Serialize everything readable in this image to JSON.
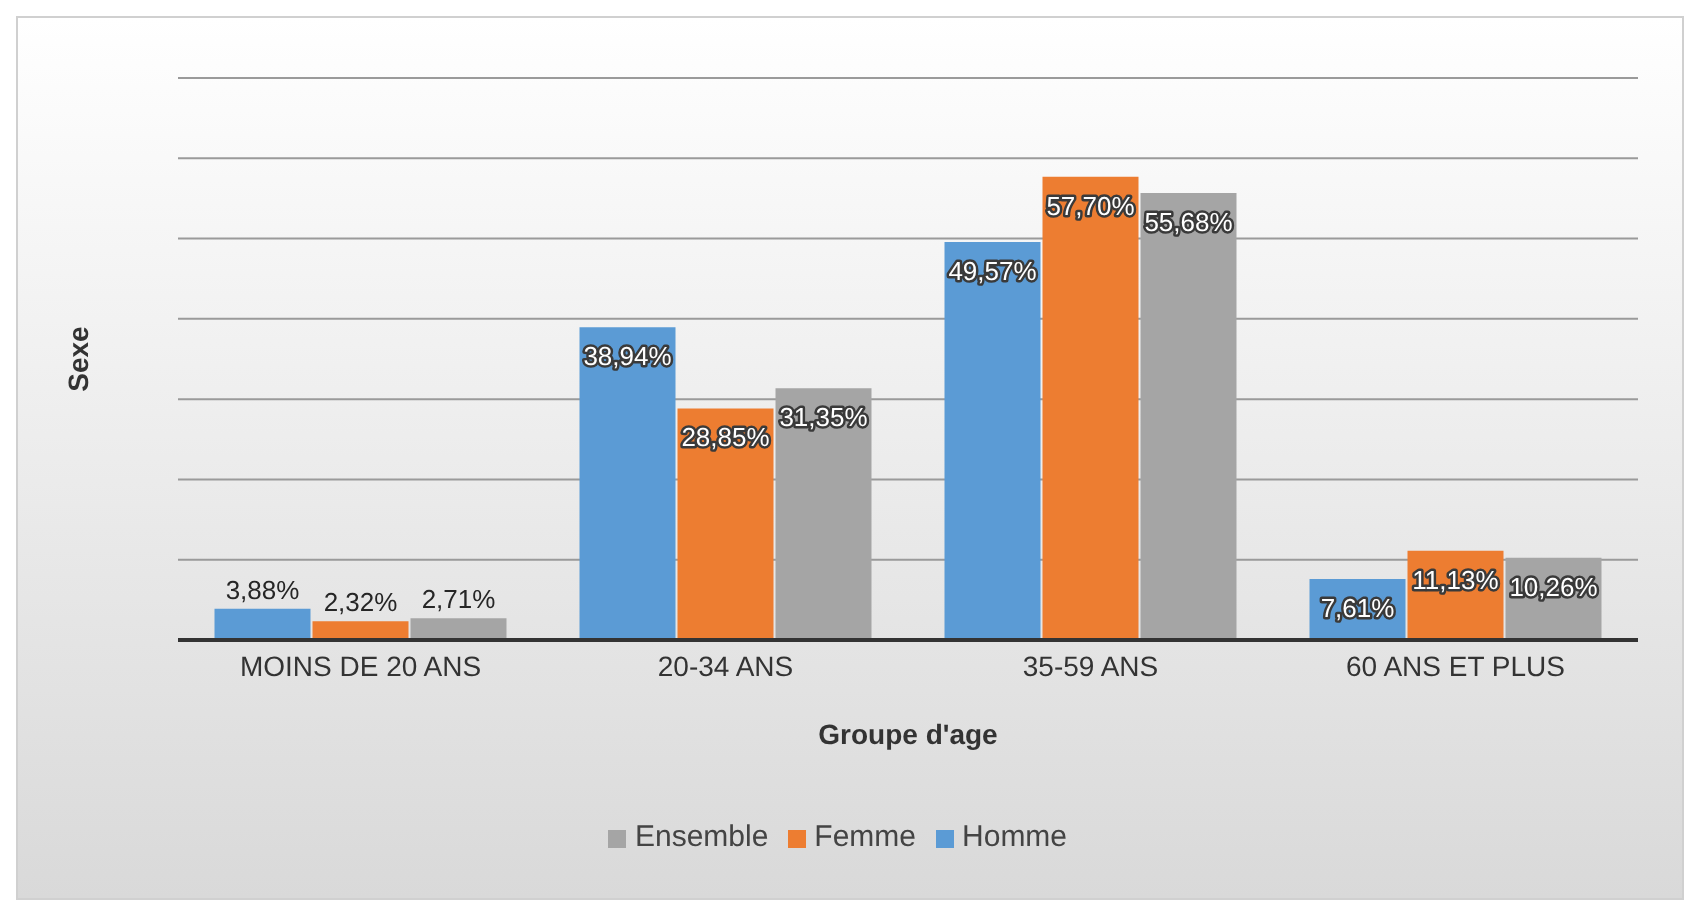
{
  "chart_data": {
    "type": "bar",
    "xlabel": "Groupe d'age",
    "ylabel": "Sexe",
    "categories": [
      "MOINS DE 20 ANS",
      "20-34 ANS",
      "35-59 ANS",
      "60 ANS ET PLUS"
    ],
    "series": [
      {
        "name": "Homme",
        "color": "#5b9bd5",
        "values": [
          3.88,
          38.94,
          49.57,
          7.61
        ],
        "value_labels": [
          "3,88%",
          "38,94%",
          "49,57%",
          "7,61%"
        ]
      },
      {
        "name": "Femme",
        "color": "#ed7d31",
        "values": [
          2.32,
          28.85,
          57.7,
          11.13
        ],
        "value_labels": [
          "2,32%",
          "28,85%",
          "57,70%",
          "11,13%"
        ]
      },
      {
        "name": "Ensemble",
        "color": "#a5a5a5",
        "values": [
          2.71,
          31.35,
          55.68,
          10.26
        ],
        "value_labels": [
          "2,71%",
          "31,35%",
          "55,68%",
          "10,26%"
        ]
      }
    ],
    "ylim": [
      0,
      70
    ],
    "grid": "y",
    "legend": "bottom",
    "tick_labels": "x"
  }
}
